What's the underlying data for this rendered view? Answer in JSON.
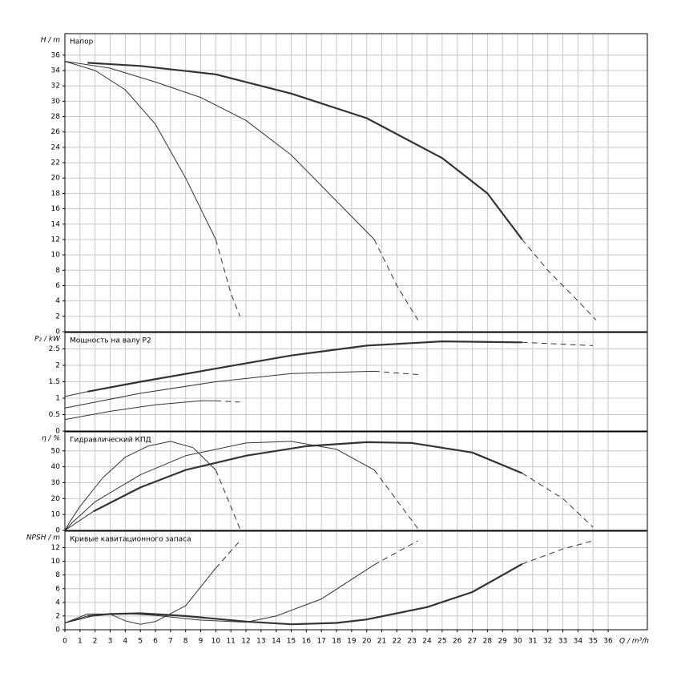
{
  "chart_data": [
    {
      "type": "line",
      "title": "Напор",
      "ylabel": "H / m",
      "xlim": [
        0,
        38.6
      ],
      "ylim": [
        0,
        38.8
      ],
      "yticks": [
        0,
        2,
        4,
        6,
        8,
        10,
        12,
        14,
        16,
        18,
        20,
        22,
        24,
        26,
        28,
        30,
        32,
        34,
        36
      ],
      "grid": true,
      "series": [
        {
          "color": "#333333",
          "line_width": 2.2,
          "dashed": false,
          "x": [
            1.5,
            5,
            10,
            15,
            20,
            25,
            28,
            30.3
          ],
          "values": [
            35,
            34.6,
            33.5,
            31,
            27.8,
            22.6,
            18,
            12
          ]
        },
        {
          "color": "#333333",
          "line_width": 1,
          "dashed": true,
          "x": [
            30.3,
            32,
            34,
            35.2
          ],
          "values": [
            12,
            8,
            4,
            1.5
          ]
        },
        {
          "color": "#333333",
          "line_width": 1,
          "dashed": false,
          "x": [
            0,
            3,
            6,
            9,
            12,
            15,
            18,
            20.5
          ],
          "values": [
            35.2,
            34.3,
            32.5,
            30.5,
            27.5,
            23,
            17,
            12
          ]
        },
        {
          "color": "#333333",
          "line_width": 1,
          "dashed": true,
          "x": [
            20.5,
            22,
            23.4
          ],
          "values": [
            12,
            6,
            1.5
          ]
        },
        {
          "color": "#333333",
          "line_width": 1,
          "dashed": false,
          "x": [
            0,
            2,
            4,
            6,
            8,
            10
          ],
          "values": [
            35.2,
            34,
            31.5,
            27,
            20,
            12
          ]
        },
        {
          "color": "#333333",
          "line_width": 1,
          "dashed": true,
          "x": [
            10,
            11,
            11.6
          ],
          "values": [
            12,
            5,
            2
          ]
        }
      ]
    },
    {
      "type": "line",
      "title": "Мощность на валу P2",
      "ylabel": "P₂ / kW",
      "xlim": [
        0,
        38.6
      ],
      "ylim": [
        0,
        3
      ],
      "yticks": [
        0,
        0.5,
        1,
        1.5,
        2,
        2.5
      ],
      "grid": true,
      "series": [
        {
          "color": "#333333",
          "line_width": 1,
          "dashed": false,
          "x": [
            0,
            1.5
          ],
          "values": [
            1.05,
            1.2
          ]
        },
        {
          "color": "#333333",
          "line_width": 2.2,
          "dashed": false,
          "x": [
            1.5,
            5,
            10,
            15,
            20,
            25,
            30.3
          ],
          "values": [
            1.2,
            1.5,
            1.9,
            2.3,
            2.6,
            2.73,
            2.7
          ]
        },
        {
          "color": "#333333",
          "line_width": 1,
          "dashed": true,
          "x": [
            30.3,
            35
          ],
          "values": [
            2.7,
            2.6
          ]
        },
        {
          "color": "#333333",
          "line_width": 1,
          "dashed": false,
          "x": [
            0,
            5,
            10,
            15,
            20.5
          ],
          "values": [
            0.7,
            1.15,
            1.5,
            1.75,
            1.82
          ]
        },
        {
          "color": "#333333",
          "line_width": 1,
          "dashed": true,
          "x": [
            20.5,
            23.4
          ],
          "values": [
            1.82,
            1.72
          ]
        },
        {
          "color": "#333333",
          "line_width": 1,
          "dashed": false,
          "x": [
            0,
            3,
            6,
            9,
            10
          ],
          "values": [
            0.35,
            0.6,
            0.8,
            0.92,
            0.92
          ]
        },
        {
          "color": "#333333",
          "line_width": 1,
          "dashed": true,
          "x": [
            10,
            11.6
          ],
          "values": [
            0.92,
            0.88
          ]
        }
      ]
    },
    {
      "type": "line",
      "title": "Гидравлический КПД",
      "ylabel": "η / %",
      "xlim": [
        0,
        38.6
      ],
      "ylim": [
        0,
        62
      ],
      "yticks": [
        0,
        10,
        20,
        30,
        40,
        50
      ],
      "grid": true,
      "series": [
        {
          "color": "#333333",
          "line_width": 1,
          "dashed": false,
          "x": [
            0,
            1.9
          ],
          "values": [
            0,
            12
          ]
        },
        {
          "color": "#333333",
          "line_width": 2.2,
          "dashed": false,
          "x": [
            1.9,
            5,
            8,
            12,
            16,
            20,
            23,
            27,
            30.3
          ],
          "values": [
            12,
            27,
            38,
            47,
            53,
            55.5,
            55,
            49,
            36
          ]
        },
        {
          "color": "#333333",
          "line_width": 1,
          "dashed": true,
          "x": [
            30.3,
            33,
            35
          ],
          "values": [
            36,
            20,
            2
          ]
        },
        {
          "color": "#333333",
          "line_width": 1,
          "dashed": false,
          "x": [
            0,
            0.5,
            2,
            5,
            8,
            12,
            15,
            18,
            20.5
          ],
          "values": [
            0,
            5,
            18,
            35,
            47,
            55,
            56,
            51,
            38
          ]
        },
        {
          "color": "#333333",
          "line_width": 1,
          "dashed": true,
          "x": [
            20.5,
            23.4
          ],
          "values": [
            38,
            1
          ]
        },
        {
          "color": "#333333",
          "line_width": 1,
          "dashed": false,
          "x": [
            0,
            0.3,
            1,
            2.5,
            4,
            5.5,
            7,
            8.5,
            10
          ],
          "values": [
            0,
            5,
            15,
            33,
            46,
            53,
            56,
            52,
            38
          ]
        },
        {
          "color": "#333333",
          "line_width": 1,
          "dashed": true,
          "x": [
            10,
            11.6
          ],
          "values": [
            38,
            1
          ]
        }
      ]
    },
    {
      "type": "line",
      "title": "Кривые кавитационного запаса",
      "ylabel": "NPSH / m",
      "xlabel": "Q / m³/h",
      "xlim": [
        0,
        38.6
      ],
      "ylim": [
        0,
        14.4
      ],
      "yticks": [
        0,
        2,
        4,
        6,
        8,
        10,
        12
      ],
      "xticks": [
        0,
        1,
        2,
        3,
        4,
        5,
        6,
        7,
        8,
        9,
        10,
        11,
        12,
        13,
        14,
        15,
        16,
        17,
        18,
        19,
        20,
        21,
        22,
        23,
        24,
        25,
        26,
        27,
        28,
        29,
        30,
        31,
        32,
        33,
        34,
        35,
        36
      ],
      "grid": true,
      "series": [
        {
          "color": "#333333",
          "line_width": 1,
          "dashed": false,
          "x": [
            0,
            1.5
          ],
          "values": [
            1,
            2
          ]
        },
        {
          "color": "#333333",
          "line_width": 2.2,
          "dashed": false,
          "x": [
            1.5,
            3,
            5,
            8,
            12,
            15,
            18,
            20,
            24,
            27,
            30.3
          ],
          "values": [
            2,
            2.3,
            2.4,
            2,
            1.2,
            0.8,
            1,
            1.5,
            3.3,
            5.5,
            9.6
          ]
        },
        {
          "color": "#333333",
          "line_width": 1,
          "dashed": true,
          "x": [
            30.3,
            33,
            35
          ],
          "values": [
            9.6,
            11.8,
            13
          ]
        },
        {
          "color": "#333333",
          "line_width": 1,
          "dashed": false,
          "x": [
            0,
            2,
            4,
            6,
            9,
            12,
            14,
            17,
            20.5
          ],
          "values": [
            1,
            2.1,
            2.4,
            2.1,
            1.4,
            1.1,
            2,
            4.5,
            9.5
          ]
        },
        {
          "color": "#333333",
          "line_width": 1,
          "dashed": true,
          "x": [
            20.5,
            23.4
          ],
          "values": [
            9.5,
            13
          ]
        },
        {
          "color": "#333333",
          "line_width": 1,
          "dashed": false,
          "x": [
            0,
            1.5,
            3,
            4,
            5,
            6,
            8,
            10
          ],
          "values": [
            1,
            2.3,
            2.3,
            1.3,
            0.8,
            1.2,
            3.5,
            9
          ]
        },
        {
          "color": "#333333",
          "line_width": 1,
          "dashed": true,
          "x": [
            10,
            11.6
          ],
          "values": [
            9,
            13
          ]
        }
      ]
    }
  ]
}
